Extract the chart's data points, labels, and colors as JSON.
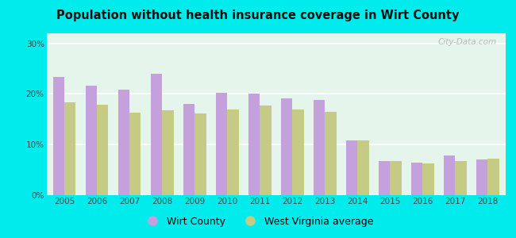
{
  "title": "Population without health insurance coverage in Wirt County",
  "years": [
    2005,
    2006,
    2007,
    2008,
    2009,
    2010,
    2011,
    2012,
    2013,
    2014,
    2015,
    2016,
    2017,
    2018
  ],
  "wirt_county": [
    23.3,
    21.7,
    20.8,
    24.0,
    18.0,
    20.3,
    20.0,
    19.1,
    18.9,
    10.8,
    6.8,
    6.5,
    7.9,
    7.0
  ],
  "wv_average": [
    18.4,
    17.9,
    16.3,
    16.8,
    16.2,
    16.9,
    17.8,
    17.0,
    16.5,
    10.8,
    6.8,
    6.2,
    6.8,
    7.2
  ],
  "wirt_color": "#C4A0DC",
  "wv_color": "#C5CB84",
  "bg_outer": "#00ECEC",
  "bg_plot": "#E5F5EC",
  "yticks": [
    0,
    10,
    20,
    30
  ],
  "ylim": [
    0,
    32
  ],
  "ylabel_format": "{}%",
  "watermark": "City-Data.com",
  "legend_wirt": "Wirt County",
  "legend_wv": "West Virginia average"
}
